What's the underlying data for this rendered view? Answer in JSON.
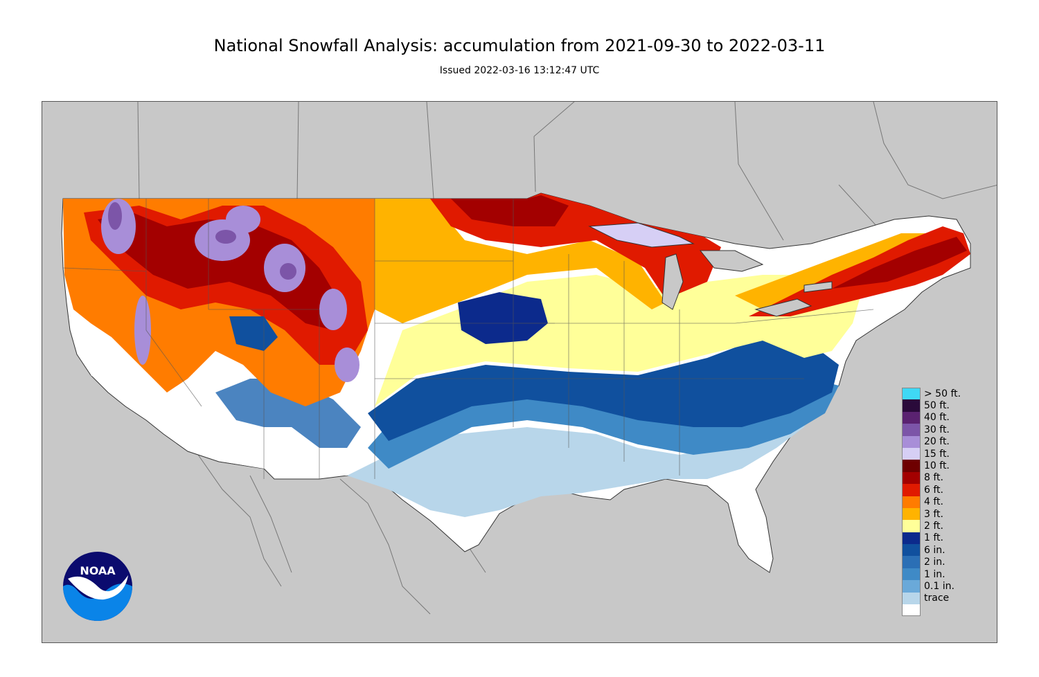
{
  "title": "National Snowfall Analysis: accumulation from 2021-09-30 to 2022-03-11",
  "subtitle": "Issued 2022-03-16 13:12:47 UTC",
  "legend": [
    {
      "label": "> 50 ft.",
      "color": "#3fd8f5"
    },
    {
      "label": "50 ft.",
      "color": "#2a0a3a"
    },
    {
      "label": "40 ft.",
      "color": "#5a2270"
    },
    {
      "label": "30 ft.",
      "color": "#7c55a8"
    },
    {
      "label": "20 ft.",
      "color": "#a88ed8"
    },
    {
      "label": "15 ft.",
      "color": "#d6cff5"
    },
    {
      "label": "10 ft.",
      "color": "#6e0000"
    },
    {
      "label": "8 ft.",
      "color": "#a30000"
    },
    {
      "label": "6 ft.",
      "color": "#e01a00"
    },
    {
      "label": "4 ft.",
      "color": "#ff7c00"
    },
    {
      "label": "3 ft.",
      "color": "#ffb300"
    },
    {
      "label": "2 ft.",
      "color": "#ffff99"
    },
    {
      "label": "1 ft.",
      "color": "#0c2a8c"
    },
    {
      "label": "6 in.",
      "color": "#10509e"
    },
    {
      "label": "2 in.",
      "color": "#2b6fb5"
    },
    {
      "label": "1 in.",
      "color": "#3f8ac6"
    },
    {
      "label": "0.1 in.",
      "color": "#6aa9d9"
    },
    {
      "label": "trace",
      "color": "#b8d6ea"
    },
    {
      "label": "",
      "color": "#ffffff"
    }
  ],
  "logo": {
    "text": "NOAA",
    "icon": "noaa-logo-icon"
  },
  "colors": {
    "land_outside": "#c8c8c8",
    "border_lines": "#666666"
  }
}
